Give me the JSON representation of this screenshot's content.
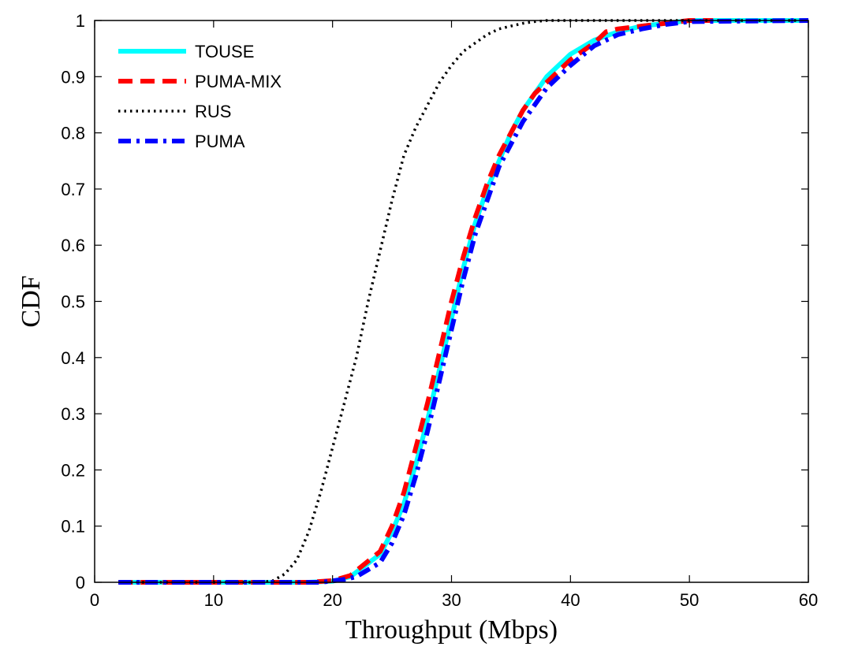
{
  "chart_data": {
    "type": "line",
    "title": "",
    "xlabel": "Throughput (Mbps)",
    "ylabel": "CDF",
    "xlim": [
      0,
      60
    ],
    "ylim": [
      0,
      1
    ],
    "xticks": [
      "0",
      "10",
      "20",
      "30",
      "40",
      "50",
      "60"
    ],
    "yticks": [
      "0",
      "0.1",
      "0.2",
      "0.3",
      "0.4",
      "0.5",
      "0.6",
      "0.7",
      "0.8",
      "0.9",
      "1"
    ],
    "grid": false,
    "legend_position": "top-left",
    "series": [
      {
        "name": "TOUSE",
        "color": "#00ffff",
        "style": "solid",
        "x": [
          2,
          10,
          18,
          20,
          21.5,
          24,
          25,
          26,
          27,
          28,
          29,
          30,
          31,
          32,
          33,
          34,
          35,
          36,
          37,
          38,
          40,
          42,
          44,
          46,
          48,
          50,
          55,
          60
        ],
        "y": [
          0,
          0,
          0,
          0.002,
          0.01,
          0.05,
          0.09,
          0.14,
          0.21,
          0.29,
          0.38,
          0.47,
          0.56,
          0.64,
          0.7,
          0.75,
          0.8,
          0.84,
          0.87,
          0.9,
          0.94,
          0.965,
          0.98,
          0.99,
          0.995,
          1,
          1,
          1
        ]
      },
      {
        "name": "PUMA-MIX",
        "color": "#ff0000",
        "style": "dashed",
        "x": [
          2,
          10,
          18,
          20,
          21.5,
          24,
          25,
          26,
          27,
          28,
          29,
          30,
          31,
          32,
          33,
          34,
          35,
          36,
          37,
          38,
          40,
          42,
          43,
          44,
          46,
          48,
          50,
          52
        ],
        "y": [
          0,
          0,
          0,
          0.003,
          0.012,
          0.055,
          0.1,
          0.16,
          0.24,
          0.32,
          0.41,
          0.5,
          0.58,
          0.65,
          0.71,
          0.76,
          0.8,
          0.84,
          0.87,
          0.89,
          0.93,
          0.96,
          0.98,
          0.985,
          0.99,
          0.995,
          1,
          1
        ]
      },
      {
        "name": "RUS",
        "color": "#000000",
        "style": "dotted",
        "x": [
          2,
          10,
          14,
          15,
          16,
          17,
          18,
          19,
          20,
          21,
          22,
          23,
          24,
          25,
          26,
          27,
          28,
          29,
          30,
          31,
          32,
          33,
          34,
          35,
          36,
          37,
          38,
          40,
          42,
          44,
          46,
          48,
          50,
          60
        ],
        "y": [
          0,
          0,
          0,
          0.003,
          0.015,
          0.04,
          0.09,
          0.16,
          0.24,
          0.32,
          0.4,
          0.5,
          0.59,
          0.68,
          0.76,
          0.81,
          0.85,
          0.89,
          0.92,
          0.945,
          0.96,
          0.975,
          0.985,
          0.99,
          0.995,
          0.998,
          1,
          1,
          1,
          1,
          1,
          1,
          1,
          1
        ]
      },
      {
        "name": "PUMA",
        "color": "#0000ff",
        "style": "dashdot",
        "x": [
          2,
          10,
          19,
          21,
          22,
          24,
          25,
          26,
          27,
          28,
          29,
          30,
          31,
          32,
          33,
          34,
          35,
          36,
          37,
          38,
          40,
          42,
          44,
          46,
          48,
          50,
          60
        ],
        "y": [
          0,
          0,
          0,
          0.005,
          0.01,
          0.035,
          0.07,
          0.12,
          0.19,
          0.27,
          0.36,
          0.45,
          0.54,
          0.62,
          0.68,
          0.74,
          0.78,
          0.82,
          0.85,
          0.88,
          0.92,
          0.955,
          0.975,
          0.985,
          0.993,
          0.998,
          1
        ]
      }
    ]
  }
}
